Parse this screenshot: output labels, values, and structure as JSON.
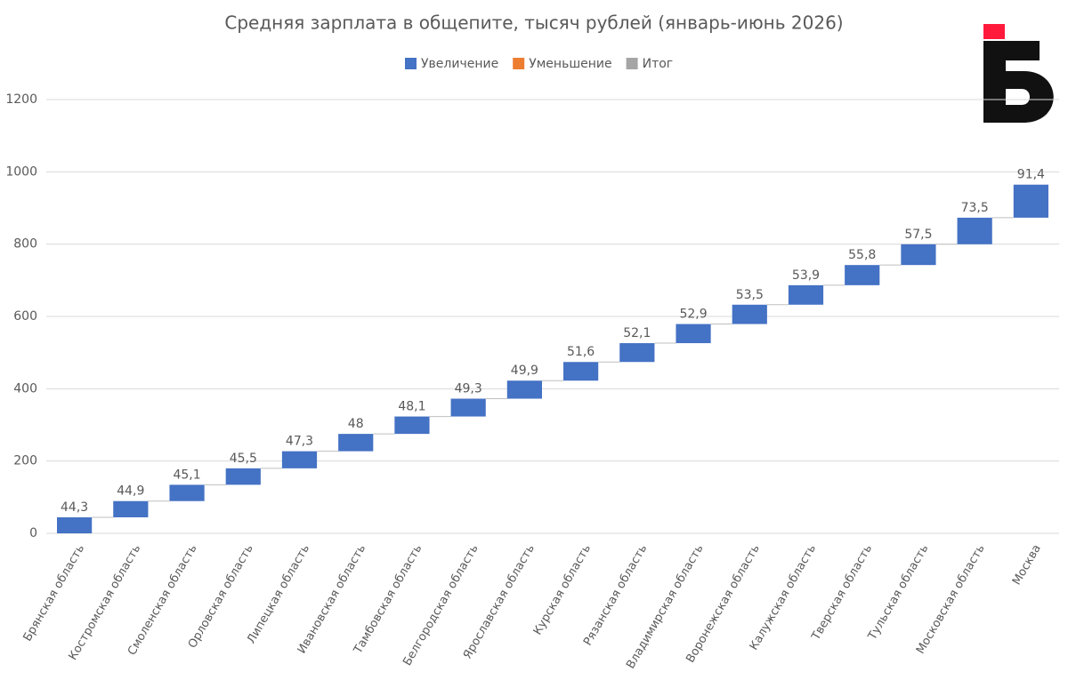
{
  "chart_data": {
    "type": "waterfall",
    "title": "Средняя зарплата в общепите, тысяч рублей (январь-июнь 2026)",
    "legend": [
      {
        "name": "Увеличение",
        "color": "#4472c4"
      },
      {
        "name": "Уменьшение",
        "color": "#ed7d31"
      },
      {
        "name": "Итог",
        "color": "#a5a5a5"
      }
    ],
    "categories": [
      "Брянская область",
      "Костромская область",
      "Смоленская область",
      "Орловская область",
      "Липецкая область",
      "Ивановская область",
      "Тамбовская область",
      "Белгородская область",
      "Ярославская область",
      "Курская область",
      "Рязанская область",
      "Владимирская область",
      "Воронежская область",
      "Калужская область",
      "Тверская область",
      "Тульская область",
      "Московская область",
      "Москва"
    ],
    "values": [
      44.3,
      44.9,
      45.1,
      45.5,
      47.3,
      48,
      48.1,
      49.3,
      49.9,
      51.6,
      52.1,
      52.9,
      53.5,
      53.9,
      55.8,
      57.5,
      73.5,
      91.4
    ],
    "value_labels": [
      "44,3",
      "44,9",
      "45,1",
      "45,5",
      "47,3",
      "48",
      "48,1",
      "49,3",
      "49,9",
      "51,6",
      "52,1",
      "52,9",
      "53,5",
      "53,9",
      "55,8",
      "57,5",
      "73,5",
      "91,4"
    ],
    "ylim": [
      0,
      1200
    ],
    "yticks": [
      0,
      200,
      400,
      600,
      800,
      1000,
      1200
    ],
    "grid": true
  }
}
